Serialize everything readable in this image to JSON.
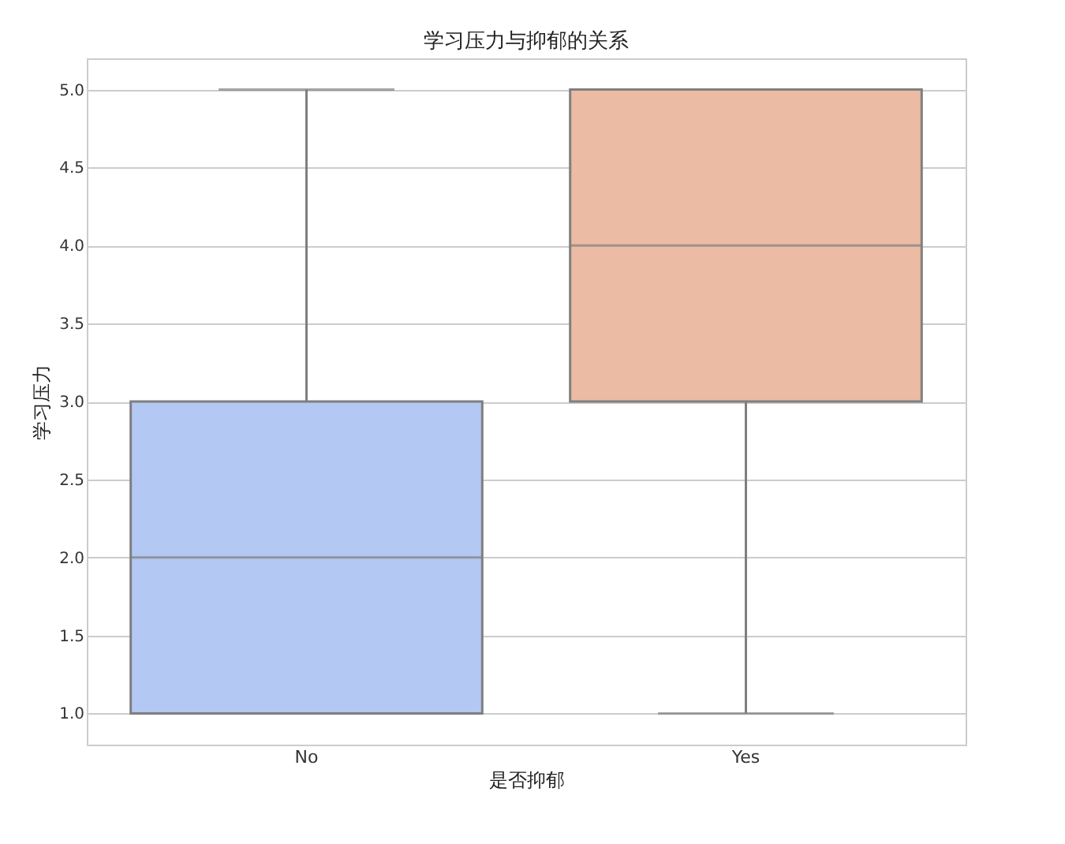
{
  "chart_data": {
    "type": "box",
    "title": "学习压力与抑郁的关系",
    "xlabel": "是否抑郁",
    "ylabel": "学习压力",
    "categories": [
      "No",
      "Yes"
    ],
    "colors": [
      "#b3c8f2",
      "#ecbba4"
    ],
    "boxes": [
      {
        "low": 1,
        "q1": 1,
        "median": 2,
        "q3": 3,
        "high": 5
      },
      {
        "low": 1,
        "q1": 3,
        "median": 4,
        "q3": 5,
        "high": 5
      }
    ],
    "ylim": [
      0.8,
      5.2
    ],
    "yticks": [
      {
        "value": 1,
        "label": "1.0"
      },
      {
        "value": 1.5,
        "label": "1.5"
      },
      {
        "value": 2,
        "label": "2.0"
      },
      {
        "value": 2.5,
        "label": "2.5"
      },
      {
        "value": 3,
        "label": "3.0"
      },
      {
        "value": 3.5,
        "label": "3.5"
      },
      {
        "value": 4,
        "label": "4.0"
      },
      {
        "value": 4.5,
        "label": "4.5"
      },
      {
        "value": 5,
        "label": "5.0"
      }
    ],
    "grid": "y",
    "legend": false
  }
}
